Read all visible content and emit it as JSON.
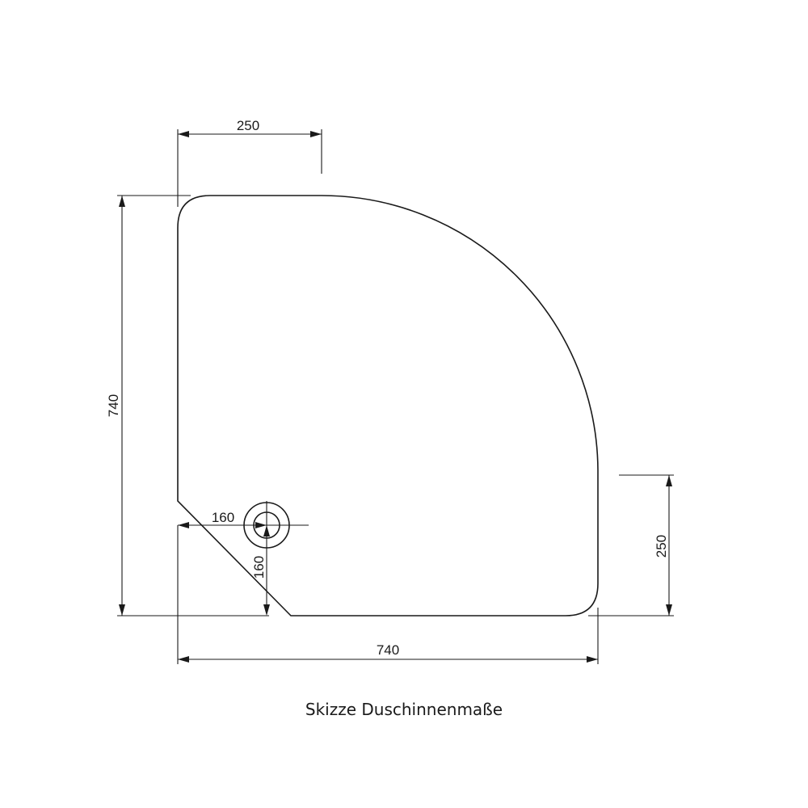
{
  "caption": "Skizze Duschinnenmaße",
  "dimensions": {
    "top_width": "250",
    "left_height": "740",
    "right_height": "250",
    "bottom_width": "740",
    "drain_x": "160",
    "drain_y": "160"
  },
  "colors": {
    "line": "#1a1a1a",
    "background": "#ffffff"
  }
}
